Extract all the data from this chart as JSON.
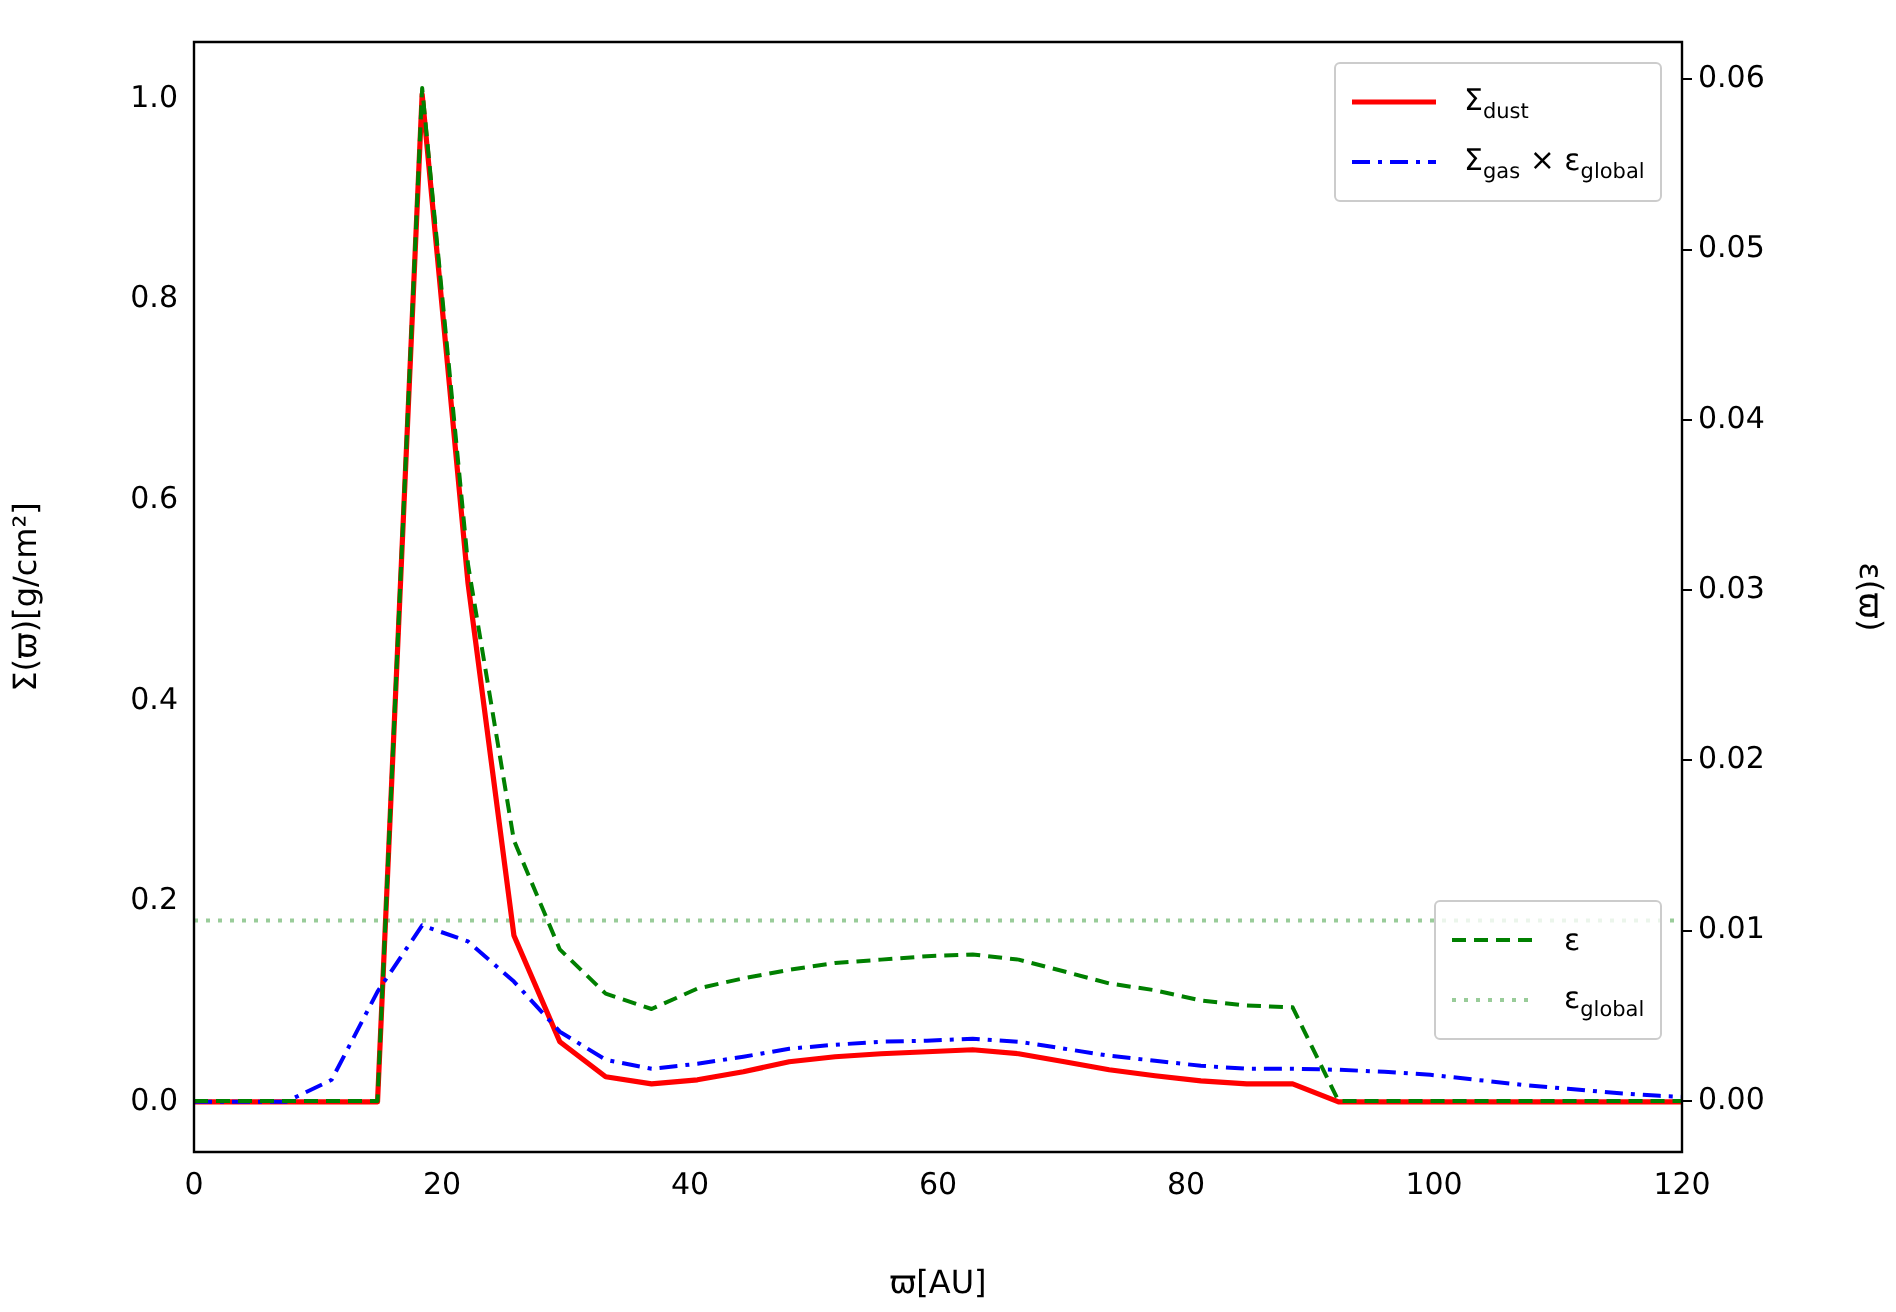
{
  "chart_data": {
    "type": "line",
    "xlabel": "ϖ[AU]",
    "ylabel": "Σ(ϖ)[g/cm²]",
    "y2label": "ε(ϖ)",
    "x": [
      0,
      3.7,
      7.4,
      11.1,
      14.8,
      18.4,
      22.1,
      25.8,
      29.5,
      33.2,
      36.9,
      40.6,
      44.3,
      48,
      51.7,
      55.4,
      59.1,
      62.8,
      66.5,
      70.2,
      73.8,
      77.5,
      81.2,
      84.9,
      88.6,
      92.3,
      96,
      99.7,
      103.4,
      107.1,
      110.8,
      114.5,
      118.2,
      120
    ],
    "series": [
      {
        "name": "Σ$_{dust}$",
        "color": "#ff0000",
        "line_style": "solid",
        "values": [
          0,
          0,
          0,
          0,
          0,
          1.005,
          0.517,
          0.166,
          0.06,
          0.025,
          0.018,
          0.022,
          0.03,
          0.04,
          0.045,
          0.048,
          0.05,
          0.052,
          0.048,
          0.04,
          0.032,
          0.026,
          0.021,
          0.018,
          0.018,
          0,
          0,
          0,
          0,
          0,
          0,
          0,
          0,
          0
        ]
      },
      {
        "name": "Σ$_{gas}$ × ε$_{global}$",
        "color": "#0000ff",
        "line_style": "dashdot",
        "values": [
          0,
          0,
          0,
          0.022,
          0.11,
          0.176,
          0.16,
          0.12,
          0.07,
          0.042,
          0.033,
          0.038,
          0.045,
          0.053,
          0.057,
          0.06,
          0.061,
          0.063,
          0.06,
          0.053,
          0.046,
          0.041,
          0.036,
          0.033,
          0.033,
          0.032,
          0.03,
          0.027,
          0.022,
          0.017,
          0.013,
          0.009,
          0.006,
          0.005
        ]
      },
      {
        "name": "ε",
        "color": "#008000",
        "line_style": "dashed",
        "axis": "y2",
        "values": [
          0,
          0,
          0,
          0,
          0,
          0.0595,
          0.0315,
          0.0153,
          0.0089,
          0.0063,
          0.0054,
          0.0066,
          0.0072,
          0.0077,
          0.0081,
          0.0083,
          0.0085,
          0.0086,
          0.0083,
          0.0076,
          0.0069,
          0.0065,
          0.0059,
          0.0056,
          0.0055,
          0,
          0,
          0,
          0,
          0,
          0,
          0,
          0,
          0
        ]
      }
    ],
    "ref_lines": [
      {
        "axis": "y2",
        "value": 0.0106,
        "label": "ε$_{global}$",
        "color": "#99cc99",
        "line_style": "dotted"
      }
    ],
    "xlim": [
      0,
      120
    ],
    "xticks": [
      0,
      20,
      40,
      60,
      80,
      100,
      120
    ],
    "ylim": [
      -0.05,
      1.057
    ],
    "yticks": [
      {
        "value": 0,
        "label": "0.0"
      },
      0.2,
      0.4,
      0.6,
      0.8,
      {
        "value": 1,
        "label": "1.0"
      }
    ],
    "y2lim": [
      -0.003,
      0.0622
    ],
    "y2ticks": [
      {
        "value": 0,
        "label": "0.00"
      },
      {
        "value": 0.01,
        "label": "0.01"
      },
      {
        "value": 0.02,
        "label": "0.02"
      },
      {
        "value": 0.03,
        "label": "0.03"
      },
      {
        "value": 0.04,
        "label": "0.04"
      },
      {
        "value": 0.05,
        "label": "0.05"
      },
      {
        "value": 0.06,
        "label": "0.06"
      }
    ],
    "grid": false,
    "legend": "right",
    "marker": "none"
  }
}
